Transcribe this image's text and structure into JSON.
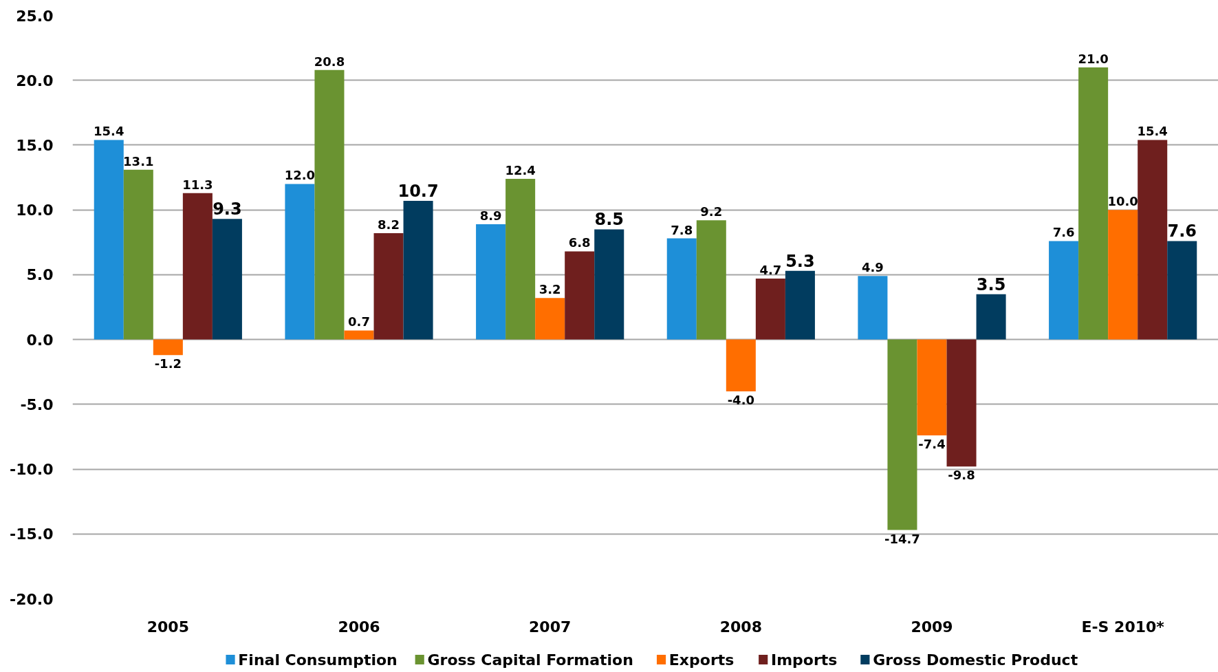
{
  "chart_data": {
    "type": "bar",
    "categories": [
      "2005",
      "2006",
      "2007",
      "2008",
      "2009",
      "E-S 2010*"
    ],
    "series": [
      {
        "name": "Final Consumption",
        "color": "#1e8fd8",
        "values": [
          15.4,
          12.0,
          8.9,
          7.8,
          4.9,
          7.6
        ],
        "value_labels": [
          "15.4",
          "12.0",
          "8.9",
          "7.8",
          "4.9",
          "7.6"
        ]
      },
      {
        "name": "Gross Capital Formation",
        "color": "#6a9331",
        "values": [
          13.1,
          20.8,
          12.4,
          9.2,
          -14.7,
          21.0
        ],
        "value_labels": [
          "13.1",
          "20.8",
          "12.4",
          "9.2",
          "-14.7",
          "21.0"
        ]
      },
      {
        "name": "Exports",
        "color": "#ff6e00",
        "values": [
          -1.2,
          0.7,
          3.2,
          -4.0,
          -7.4,
          10.0
        ],
        "value_labels": [
          "-1.2",
          "0.7",
          "3.2",
          "-4.0",
          "-7.4",
          "10.0"
        ]
      },
      {
        "name": "Imports",
        "color": "#6f1f1e",
        "values": [
          11.3,
          8.2,
          6.8,
          4.7,
          -9.8,
          15.4
        ],
        "value_labels": [
          "11.3",
          "8.2",
          "6.8",
          "4.7",
          "-9.8",
          "15.4"
        ]
      },
      {
        "name": "Gross Domestic Product",
        "color": "#013c5f",
        "values": [
          9.3,
          10.7,
          8.5,
          5.3,
          3.5,
          7.6
        ],
        "value_labels": [
          "9.3",
          "10.7",
          "8.5",
          "5.3",
          "3.5",
          "7.6"
        ]
      }
    ],
    "ylim": [
      -20,
      25
    ],
    "yticks": [
      {
        "value": -20,
        "label": "-20.0"
      },
      {
        "value": -15,
        "label": "-15.0"
      },
      {
        "value": -10,
        "label": "-10.0"
      },
      {
        "value": -5,
        "label": "-5.0"
      },
      {
        "value": 0,
        "label": "0.0"
      },
      {
        "value": 5,
        "label": "5.0"
      },
      {
        "value": 10,
        "label": "10.0"
      },
      {
        "value": 15,
        "label": "15.0"
      },
      {
        "value": 20,
        "label": "20.0"
      },
      {
        "value": 25,
        "label": "25.0"
      }
    ],
    "grid": "y",
    "legend": "bottom"
  }
}
